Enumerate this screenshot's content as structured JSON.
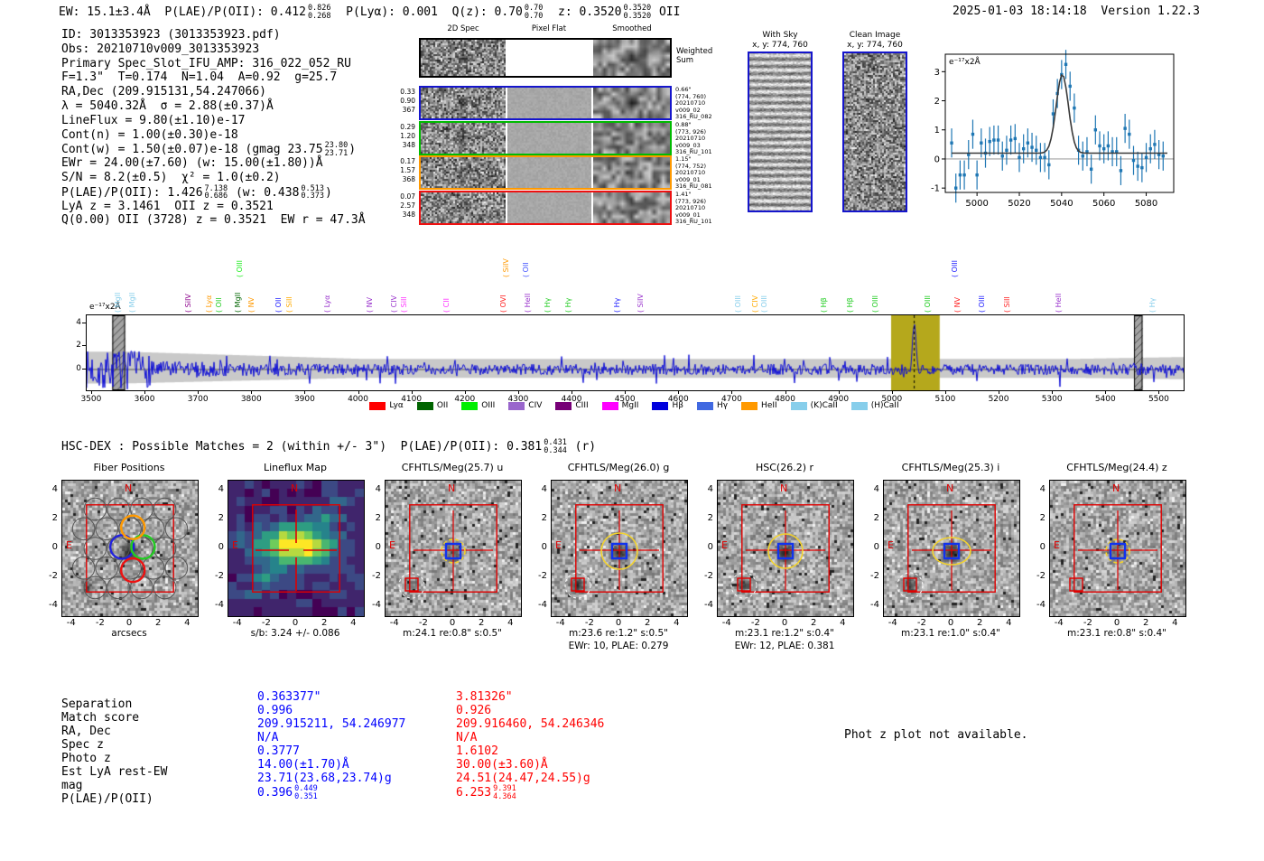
{
  "header": {
    "segments": [
      {
        "t": "EW: 15.1±3.4Å  P(LAE)/P(OII): 0.412"
      },
      {
        "frac": [
          "0.826",
          "0.268"
        ]
      },
      {
        "t": "  P(Lyα): 0.001  Q(z): 0.70"
      },
      {
        "frac": [
          "0.70",
          "0.70"
        ]
      },
      {
        "t": "  z: 0.3520"
      },
      {
        "frac": [
          "0.3520",
          "0.3520"
        ]
      },
      {
        "t": " OII"
      }
    ],
    "timestamp": "2025-01-03 18:14:18",
    "version": "Version 1.22.3"
  },
  "info_lines": [
    [
      {
        "t": "ID: 3013353923 (3013353923.pdf)"
      }
    ],
    [
      {
        "t": "Obs: 20210710v009_3013353923"
      }
    ],
    [
      {
        "t": "Primary Spec_Slot_IFU_AMP: 316_022_052_RU"
      }
    ],
    [
      {
        "t": "F=1.3\"  T=0.174  N=1.04  A=0.92  g=25.7"
      }
    ],
    [
      {
        "t": "RA,Dec (209.915131,54.247066)"
      }
    ],
    [
      {
        "t": "λ = 5040.32Å  σ = 2.88(±0.37)Å"
      }
    ],
    [
      {
        "t": "LineFlux = 9.80(±1.10)e-17"
      }
    ],
    [
      {
        "t": "Cont(n) = 1.00(±0.30)e-18"
      }
    ],
    [
      {
        "t": "Cont(w) = 1.50(±0.07)e-18 (gmag 23.75"
      },
      {
        "frac": [
          "23.80",
          "23.71"
        ]
      },
      {
        "t": ")"
      }
    ],
    [
      {
        "t": "EWr = 24.00(±7.60) (w: 15.00(±1.80))Å"
      }
    ],
    [
      {
        "t": "S/N = 8.2(±0.5)  χ² = 1.0(±0.2)"
      }
    ],
    [
      {
        "t": "P(LAE)/P(OII): 1.426"
      },
      {
        "frac": [
          "7.138",
          "0.686"
        ]
      },
      {
        "t": " (w: 0.438"
      },
      {
        "frac": [
          "0.513",
          "0.373"
        ]
      },
      {
        "t": ")"
      }
    ],
    [
      {
        "t": "LyA z = 3.1461  OII z = 0.3521"
      }
    ],
    [
      {
        "t": "Q(0.00) OII (3728) z = 0.3521  EW r = 47.3Å"
      }
    ]
  ],
  "spec2d": {
    "col_titles": [
      "2D Spec",
      "Pixel Flat",
      "Smoothed"
    ],
    "weighted_label": "Weighted Sum",
    "rows": [
      {
        "color": "#1515cc",
        "left": [
          "0.33",
          "0.90",
          "367"
        ],
        "right": [
          "0.66\"",
          "(774, 760)",
          "20210710",
          "v009_02",
          "316_RU_082"
        ]
      },
      {
        "color": "#00bb00",
        "left": [
          "0.29",
          "1.20",
          "348"
        ],
        "right": [
          "0.88\"",
          "(773, 926)",
          "20210710",
          "v009_03",
          "316_RU_101"
        ]
      },
      {
        "color": "#ff9900",
        "left": [
          "0.17",
          "1.57",
          "368"
        ],
        "right": [
          "1.15\"",
          "(774, 752)",
          "20210710",
          "v009_01",
          "316_RU_081"
        ]
      },
      {
        "color": "#ee1111",
        "left": [
          "0.07",
          "2.57",
          "348"
        ],
        "right": [
          "1.41\"",
          "(773, 926)",
          "20210710",
          "v009_01",
          "316_RU_101"
        ]
      }
    ]
  },
  "sky_panels": [
    {
      "title": "With Sky",
      "coords": "x, y: 774, 760",
      "pattern": "stripes"
    },
    {
      "title": "Clean Image",
      "coords": "x, y: 774, 760",
      "pattern": "noise"
    }
  ],
  "hsc_line": [
    {
      "t": "HSC-DEX : Possible Matches = 2 (within +/- 3\")  P(LAE)/P(OII): 0.381"
    },
    {
      "frac": [
        "0.431",
        "0.344"
      ]
    },
    {
      "t": " (r)"
    }
  ],
  "chart_data": [
    {
      "type": "scatter",
      "title": "Line fit at detection wavelength",
      "ylabel": "e⁻¹⁷x2Å",
      "xlim": [
        4985,
        5093
      ],
      "ylim": [
        -1.15,
        3.6
      ],
      "xticks": [
        5000,
        5020,
        5040,
        5060,
        5080
      ],
      "yticks": [
        -1,
        0,
        1,
        2,
        3
      ],
      "x_start": 4988,
      "x_step": 2,
      "y": [
        0.55,
        -1.0,
        -0.55,
        -0.55,
        0.15,
        0.85,
        -0.55,
        0.55,
        0.2,
        0.6,
        0.65,
        0.65,
        0.1,
        0.3,
        0.65,
        0.7,
        0.05,
        0.35,
        0.55,
        0.4,
        0.3,
        0.05,
        0.05,
        -0.2,
        1.55,
        2.25,
        2.9,
        3.25,
        2.5,
        1.75,
        0.3,
        0.1,
        0.25,
        -0.35,
        1.0,
        0.45,
        0.35,
        0.45,
        0.25,
        0.25,
        -0.4,
        1.05,
        0.85,
        -0.05,
        -0.25,
        -0.3,
        0.05,
        0.35,
        0.5,
        0.15,
        0.1
      ],
      "yerr": 0.5,
      "fit": {
        "type": "gaussian",
        "center": 5040.32,
        "sigma": 2.88,
        "amplitude": 2.7,
        "baseline": 0.2
      },
      "marker_color": "#1f77b4",
      "fit_color": "#3a3a3a"
    },
    {
      "type": "line",
      "title": "Full spectrum",
      "ylabel": "e⁻¹⁷x2Å",
      "xlim": [
        3490,
        5545
      ],
      "ylim": [
        -1.8,
        4.7
      ],
      "xticks": [
        3500,
        3600,
        3700,
        3800,
        3900,
        4000,
        4100,
        4200,
        4300,
        4400,
        4500,
        4600,
        4700,
        4800,
        4900,
        5000,
        5100,
        5200,
        5300,
        5400,
        5500
      ],
      "yticks": [
        0,
        2,
        4
      ],
      "detection_wavelength": 5040.32,
      "highlight_band": [
        4997,
        5088
      ],
      "hatch_bands": [
        [
          3538,
          3562
        ],
        [
          5452,
          5468
        ]
      ],
      "peak": {
        "center": 5040,
        "height": 4.15,
        "sigma": 3
      },
      "noise_band_level": 0.9,
      "line_color": "#1111d6",
      "band_color": "#c9c9c9",
      "highlight_color": "#b5a81c",
      "emission_labels": [
        {
          "wavelength": 3560,
          "label": "MgII",
          "color": "#87ceeb",
          "tall": false
        },
        {
          "wavelength": 3586,
          "label": "MgII",
          "color": "#87ceeb",
          "tall": false
        },
        {
          "wavelength": 3691,
          "label": "SiIV",
          "color": "#8b008b",
          "tall": false
        },
        {
          "wavelength": 3731,
          "label": "Lyα",
          "color": "#ff9900",
          "tall": false
        },
        {
          "wavelength": 3749,
          "label": "OII",
          "color": "#22cc22",
          "tall": false
        },
        {
          "wavelength": 3785,
          "label": "MgII",
          "color": "#006400",
          "tall": false
        },
        {
          "wavelength": 3787,
          "label": "OIII",
          "color": "#22ee22",
          "tall": true
        },
        {
          "wavelength": 3809,
          "label": "NV",
          "color": "#ff9900",
          "tall": false
        },
        {
          "wavelength": 3860,
          "label": "OII",
          "color": "#2222ff",
          "tall": false
        },
        {
          "wavelength": 3880,
          "label": "SiII",
          "color": "#ffaa00",
          "tall": false
        },
        {
          "wavelength": 3952,
          "label": "Lyα",
          "color": "#9933cc",
          "tall": false
        },
        {
          "wavelength": 4032,
          "label": "NV",
          "color": "#9933cc",
          "tall": false
        },
        {
          "wavelength": 4077,
          "label": "CIV",
          "color": "#9933cc",
          "tall": false
        },
        {
          "wavelength": 4096,
          "label": "SiII",
          "color": "#ff33ff",
          "tall": false
        },
        {
          "wavelength": 4175,
          "label": "CII",
          "color": "#ff33ff",
          "tall": false
        },
        {
          "wavelength": 4281,
          "label": "OVI",
          "color": "#ff2222",
          "tall": false
        },
        {
          "wavelength": 4287,
          "label": "SiIV",
          "color": "#ff9900",
          "tall": true
        },
        {
          "wavelength": 4324,
          "label": "OII",
          "color": "#4455ff",
          "tall": true
        },
        {
          "wavelength": 4328,
          "label": "HeII",
          "color": "#9933cc",
          "tall": false
        },
        {
          "wavelength": 4364,
          "label": "Hγ",
          "color": "#22cc22",
          "tall": false
        },
        {
          "wavelength": 4403,
          "label": "Hγ",
          "color": "#22cc22",
          "tall": false
        },
        {
          "wavelength": 4494,
          "label": "Hγ",
          "color": "#2222ff",
          "tall": false
        },
        {
          "wavelength": 4538,
          "label": "SiIV",
          "color": "#9933cc",
          "tall": false
        },
        {
          "wavelength": 4722,
          "label": "OIII",
          "color": "#87ceeb",
          "tall": false
        },
        {
          "wavelength": 4754,
          "label": "CIV",
          "color": "#ffaa00",
          "tall": false
        },
        {
          "wavelength": 4771,
          "label": "OIII",
          "color": "#87ceeb",
          "tall": false
        },
        {
          "wavelength": 4882,
          "label": "Hβ",
          "color": "#22cc22",
          "tall": false
        },
        {
          "wavelength": 4931,
          "label": "Hβ",
          "color": "#22cc22",
          "tall": false
        },
        {
          "wavelength": 4978,
          "label": "OIII",
          "color": "#22cc22",
          "tall": false
        },
        {
          "wavelength": 5077,
          "label": "OIII",
          "color": "#22cc22",
          "tall": false
        },
        {
          "wavelength": 5128,
          "label": "OIII",
          "color": "#2222ff",
          "tall": true
        },
        {
          "wavelength": 5133,
          "label": "NV",
          "color": "#ff2222",
          "tall": false
        },
        {
          "wavelength": 5178,
          "label": "OIII",
          "color": "#2222ff",
          "tall": false
        },
        {
          "wavelength": 5226,
          "label": "SiII",
          "color": "#ff2222",
          "tall": false
        },
        {
          "wavelength": 5322,
          "label": "HeII",
          "color": "#9933cc",
          "tall": false
        },
        {
          "wavelength": 5497,
          "label": "Hγ",
          "color": "#87ceeb",
          "tall": false
        }
      ],
      "legend": [
        {
          "label": "Lyα",
          "color": "#ff0000"
        },
        {
          "label": "OII",
          "color": "#006400"
        },
        {
          "label": "OIII",
          "color": "#00ee00"
        },
        {
          "label": "CIV",
          "color": "#9966cc"
        },
        {
          "label": "CIII",
          "color": "#770077"
        },
        {
          "label": "MgII",
          "color": "#ff00ff"
        },
        {
          "label": "Hβ",
          "color": "#0000dd"
        },
        {
          "label": "Hγ",
          "color": "#4169e1"
        },
        {
          "label": "HeII",
          "color": "#ff9900"
        },
        {
          "label": "(K)CaII",
          "color": "#87ceeb"
        },
        {
          "label": "(H)CaII",
          "color": "#87ceeb"
        }
      ]
    }
  ],
  "cutouts": {
    "ticks": [
      -4,
      -2,
      0,
      2,
      4
    ],
    "compass_n": "N",
    "compass_e": "E",
    "panels": [
      {
        "title": "Fiber Positions",
        "kind": "fibers",
        "caption": "arcsecs"
      },
      {
        "title": "Lineflux Map",
        "kind": "lineflux",
        "caption": "s/b: 3.24 +/- 0.086"
      },
      {
        "title": "CFHTLS/Meg(25.7) u",
        "kind": "image",
        "caption": "m:24.1  re:0.8\"  s:0.5\""
      },
      {
        "title": "CFHTLS/Meg(26.0) g",
        "kind": "image",
        "caption": "m:23.6  re:1.2\"  s:0.5\"",
        "caption2": "EWr: 10, PLAE: 0.279"
      },
      {
        "title": "HSC(26.2) r",
        "kind": "image",
        "caption": "m:23.1  re:1.2\"  s:0.4\"",
        "caption2": "EWr: 12, PLAE: 0.381"
      },
      {
        "title": "CFHTLS/Meg(25.3) i",
        "kind": "image",
        "caption": "m:23.1  re:1.0\"  s:0.4\""
      },
      {
        "title": "CFHTLS/Meg(24.4) z",
        "kind": "image",
        "caption": "m:23.1  re:0.8\"  s:0.4\""
      }
    ]
  },
  "match_table": {
    "labels": [
      "Separation",
      "Match score",
      "RA, Dec",
      "Spec z",
      "Photo z",
      "Est LyA rest-EW",
      "mag",
      "P(LAE)/P(OII)"
    ],
    "columns": [
      {
        "color": "#0000ff",
        "values": [
          "0.363377\"",
          "0.996",
          "209.915211, 54.246977",
          "N/A",
          "0.3777",
          "14.00(±1.70)Å",
          "23.71(23.68,23.74)g",
          {
            "t": "0.396",
            "frac": [
              "0.449",
              "0.351"
            ]
          }
        ]
      },
      {
        "color": "#ff0000",
        "values": [
          "3.81326\"",
          "0.926",
          "209.916460, 54.246346",
          "N/A",
          "1.6102",
          "30.00(±3.60)Å",
          "24.51(24.47,24.55)g",
          {
            "t": "6.253",
            "frac": [
              "9.391",
              "4.364"
            ]
          }
        ]
      }
    ],
    "note": "Phot z plot not available."
  }
}
